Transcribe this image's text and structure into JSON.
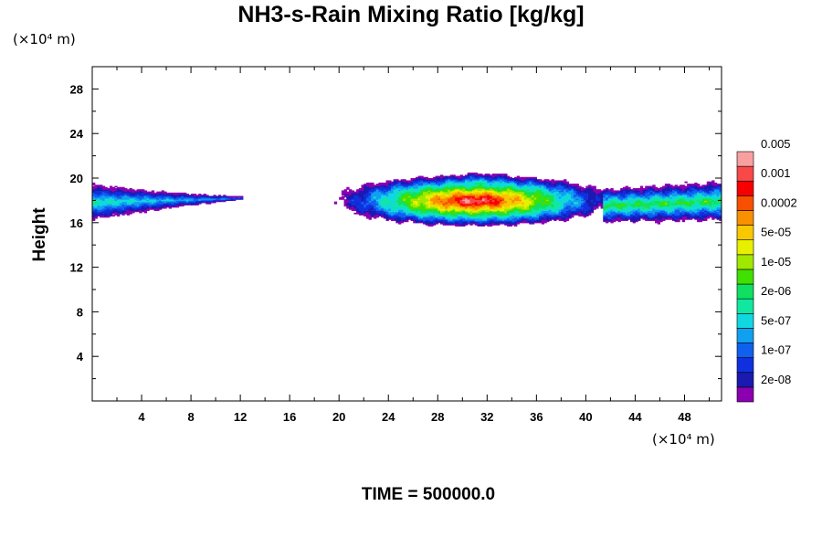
{
  "chart_data": {
    "type": "contour",
    "title": "NH3-s-Rain Mixing Ratio [kg/kg]",
    "ylabel": "Height",
    "xlabel": "",
    "x_unit": "(×10⁴ m)",
    "y_unit": "(×10⁴ m)",
    "xlim": [
      0,
      51
    ],
    "ylim": [
      0,
      30
    ],
    "x_ticks": [
      4,
      8,
      12,
      16,
      20,
      24,
      28,
      32,
      36,
      40,
      44,
      48
    ],
    "y_ticks": [
      4,
      8,
      12,
      16,
      20,
      24,
      28
    ],
    "time_label": "TIME = 500000.0",
    "colorbar": {
      "colors": [
        "#8b00b0",
        "#1a1ab0",
        "#1030e0",
        "#1060f0",
        "#10a0f0",
        "#10d8e0",
        "#10e8a0",
        "#10e060",
        "#40e000",
        "#a0e800",
        "#e8f000",
        "#f8c800",
        "#f89000",
        "#f85000",
        "#f80000",
        "#f84848",
        "#f8a0a0"
      ],
      "labels": [
        "2e-08",
        "1e-07",
        "5e-07",
        "2e-06",
        "1e-05",
        "5e-05",
        "0.0002",
        "0.001",
        "0.005"
      ]
    },
    "regions": [
      {
        "name": "left-band",
        "x_range": [
          0,
          12
        ],
        "y_range": [
          16,
          19.5
        ],
        "peak_level": "2e-06"
      },
      {
        "name": "central-cloud",
        "x_range": [
          18.5,
          42
        ],
        "y_range": [
          15,
          21
        ],
        "peak_level": "0.005",
        "peak_x": 31,
        "peak_y": 18
      },
      {
        "name": "right-band",
        "x_range": [
          42,
          51
        ],
        "y_range": [
          16,
          19.8
        ],
        "peak_level": "5e-05"
      }
    ]
  }
}
